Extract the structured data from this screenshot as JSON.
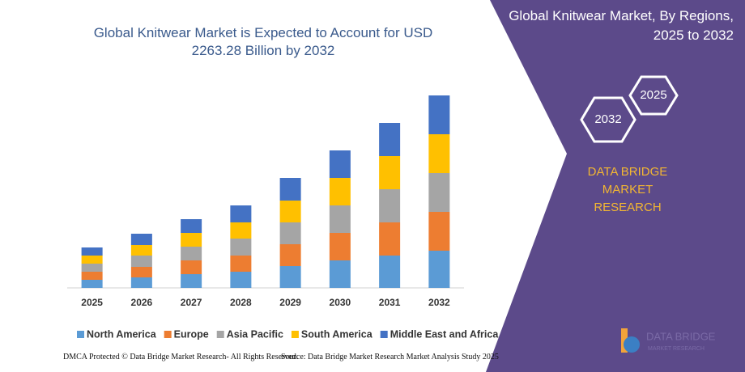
{
  "chart_data": {
    "type": "stacked-bar",
    "title": "Global Knitwear Market is Expected to Account for USD 2263.28 Billion by 2032",
    "categories": [
      "2025",
      "2026",
      "2027",
      "2028",
      "2029",
      "2030",
      "2031",
      "2032"
    ],
    "series": [
      {
        "name": "North America",
        "color": "#5b9bd5",
        "values": [
          10,
          13,
          17,
          20,
          27,
          34,
          40,
          46
        ]
      },
      {
        "name": "Europe",
        "color": "#ed7d31",
        "values": [
          10,
          13,
          17,
          20,
          27,
          34,
          41,
          48
        ]
      },
      {
        "name": "Asia Pacific",
        "color": "#a5a5a5",
        "values": [
          10,
          14,
          17,
          21,
          27,
          34,
          41,
          48
        ]
      },
      {
        "name": "South America",
        "color": "#ffc000",
        "values": [
          10,
          13,
          17,
          20,
          27,
          34,
          41,
          48
        ]
      },
      {
        "name": "Middle East and Africa",
        "color": "#4472c4",
        "values": [
          10,
          14,
          17,
          21,
          28,
          34,
          41,
          48
        ]
      }
    ],
    "legend": "bottom"
  },
  "panel": {
    "title": "Global Knitwear Market, By Regions, 2025 to 2032",
    "hexagons": [
      "2032",
      "2025"
    ],
    "brand": "DATA BRIDGE MARKET RESEARCH",
    "logo": [
      "DATA BRIDGE",
      "MARKET RESEARCH"
    ]
  },
  "footer": {
    "left": "DMCA Protected © Data Bridge Market Research-  All Rights Reserved.",
    "right": "Source: Data Bridge Market Research  Market Analysis Study 2025"
  }
}
